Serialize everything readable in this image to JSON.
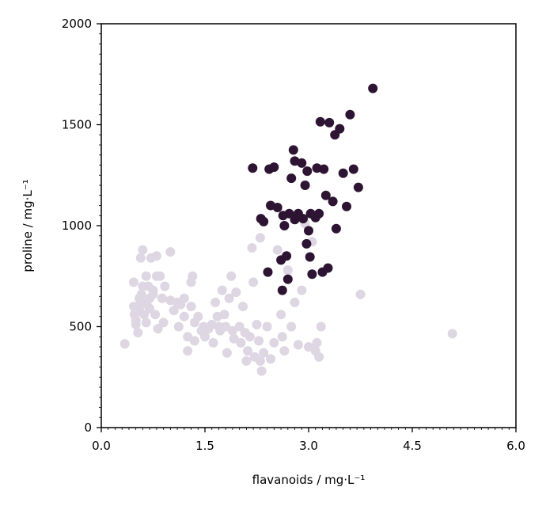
{
  "chart_data": {
    "type": "scatter",
    "xlabel": "flavanoids / mg·L⁻¹",
    "ylabel": "proline / mg·L⁻¹",
    "xlim": [
      0,
      6
    ],
    "ylim": [
      0,
      2000
    ],
    "xticks": [
      0,
      1.5,
      3,
      4.5,
      6
    ],
    "xtick_labels": [
      "0.0",
      "1.5",
      "3.0",
      "4.5",
      "6.0"
    ],
    "yticks": [
      0,
      500,
      1000,
      1500,
      2000
    ],
    "ytick_labels": [
      "0",
      "500",
      "1000",
      "1500",
      "2000"
    ],
    "grid": false,
    "series": [
      {
        "color": "#ded6e2",
        "points": [
          [
            0.34,
            415
          ],
          [
            0.47,
            720
          ],
          [
            0.47,
            600
          ],
          [
            0.48,
            560
          ],
          [
            0.5,
            530
          ],
          [
            0.5,
            510
          ],
          [
            0.52,
            580
          ],
          [
            0.53,
            470
          ],
          [
            0.55,
            640
          ],
          [
            0.55,
            600
          ],
          [
            0.55,
            580
          ],
          [
            0.57,
            840
          ],
          [
            0.58,
            660
          ],
          [
            0.6,
            880
          ],
          [
            0.6,
            700
          ],
          [
            0.6,
            620
          ],
          [
            0.62,
            560
          ],
          [
            0.65,
            750
          ],
          [
            0.65,
            520
          ],
          [
            0.66,
            610
          ],
          [
            0.68,
            700
          ],
          [
            0.7,
            640
          ],
          [
            0.7,
            590
          ],
          [
            0.72,
            840
          ],
          [
            0.75,
            680
          ],
          [
            0.75,
            660
          ],
          [
            0.78,
            560
          ],
          [
            0.8,
            850
          ],
          [
            0.8,
            750
          ],
          [
            0.82,
            490
          ],
          [
            0.85,
            750
          ],
          [
            0.88,
            640
          ],
          [
            0.9,
            520
          ],
          [
            0.92,
            700
          ],
          [
            1.0,
            870
          ],
          [
            1.0,
            630
          ],
          [
            1.05,
            580
          ],
          [
            1.1,
            620
          ],
          [
            1.12,
            500
          ],
          [
            1.15,
            610
          ],
          [
            1.2,
            640
          ],
          [
            1.2,
            550
          ],
          [
            1.25,
            450
          ],
          [
            1.25,
            380
          ],
          [
            1.3,
            600
          ],
          [
            1.3,
            720
          ],
          [
            1.32,
            750
          ],
          [
            1.35,
            520
          ],
          [
            1.35,
            430
          ],
          [
            1.4,
            550
          ],
          [
            1.45,
            480
          ],
          [
            1.48,
            500
          ],
          [
            1.5,
            450
          ],
          [
            1.55,
            490
          ],
          [
            1.6,
            510
          ],
          [
            1.62,
            420
          ],
          [
            1.65,
            620
          ],
          [
            1.68,
            550
          ],
          [
            1.7,
            500
          ],
          [
            1.72,
            480
          ],
          [
            1.75,
            680
          ],
          [
            1.78,
            560
          ],
          [
            1.8,
            500
          ],
          [
            1.82,
            370
          ],
          [
            1.85,
            640
          ],
          [
            1.88,
            750
          ],
          [
            1.9,
            480
          ],
          [
            1.92,
            440
          ],
          [
            1.95,
            670
          ],
          [
            2.0,
            500
          ],
          [
            2.02,
            420
          ],
          [
            2.05,
            600
          ],
          [
            2.08,
            470
          ],
          [
            2.1,
            330
          ],
          [
            2.12,
            380
          ],
          [
            2.15,
            450
          ],
          [
            2.18,
            890
          ],
          [
            2.2,
            720
          ],
          [
            2.22,
            350
          ],
          [
            2.25,
            510
          ],
          [
            2.28,
            430
          ],
          [
            2.3,
            940
          ],
          [
            2.3,
            330
          ],
          [
            2.32,
            280
          ],
          [
            2.35,
            370
          ],
          [
            2.4,
            500
          ],
          [
            2.45,
            340
          ],
          [
            2.5,
            420
          ],
          [
            2.55,
            880
          ],
          [
            2.6,
            560
          ],
          [
            2.62,
            450
          ],
          [
            2.65,
            380
          ],
          [
            2.7,
            780
          ],
          [
            2.75,
            500
          ],
          [
            2.8,
            620
          ],
          [
            2.85,
            410
          ],
          [
            2.9,
            680
          ],
          [
            2.95,
            1010
          ],
          [
            3.0,
            400
          ],
          [
            3.05,
            920
          ],
          [
            3.1,
            380
          ],
          [
            3.12,
            420
          ],
          [
            3.15,
            350
          ],
          [
            3.18,
            500
          ],
          [
            3.75,
            660
          ],
          [
            5.08,
            465
          ]
        ]
      },
      {
        "color": "#2d1433",
        "points": [
          [
            2.19,
            1285
          ],
          [
            2.31,
            1035
          ],
          [
            2.35,
            1020
          ],
          [
            2.41,
            770
          ],
          [
            2.43,
            1280
          ],
          [
            2.45,
            1100
          ],
          [
            2.5,
            1290
          ],
          [
            2.55,
            1090
          ],
          [
            2.6,
            830
          ],
          [
            2.62,
            680
          ],
          [
            2.63,
            1050
          ],
          [
            2.65,
            1000
          ],
          [
            2.68,
            850
          ],
          [
            2.7,
            735
          ],
          [
            2.72,
            1060
          ],
          [
            2.75,
            1235
          ],
          [
            2.78,
            1375
          ],
          [
            2.8,
            1030
          ],
          [
            2.8,
            1320
          ],
          [
            2.85,
            1060
          ],
          [
            2.9,
            1310
          ],
          [
            2.92,
            1035
          ],
          [
            2.95,
            1200
          ],
          [
            2.97,
            910
          ],
          [
            2.98,
            1270
          ],
          [
            3.0,
            975
          ],
          [
            3.02,
            845
          ],
          [
            3.03,
            1060
          ],
          [
            3.05,
            760
          ],
          [
            3.1,
            1040
          ],
          [
            3.12,
            1285
          ],
          [
            3.15,
            1060
          ],
          [
            3.17,
            1515
          ],
          [
            3.2,
            770
          ],
          [
            3.22,
            1280
          ],
          [
            3.25,
            1150
          ],
          [
            3.28,
            790
          ],
          [
            3.3,
            1510
          ],
          [
            3.35,
            1120
          ],
          [
            3.38,
            1450
          ],
          [
            3.4,
            985
          ],
          [
            3.45,
            1480
          ],
          [
            3.5,
            1260
          ],
          [
            3.55,
            1095
          ],
          [
            3.6,
            1550
          ],
          [
            3.65,
            1280
          ],
          [
            3.72,
            1190
          ],
          [
            3.93,
            1680
          ]
        ]
      }
    ]
  }
}
